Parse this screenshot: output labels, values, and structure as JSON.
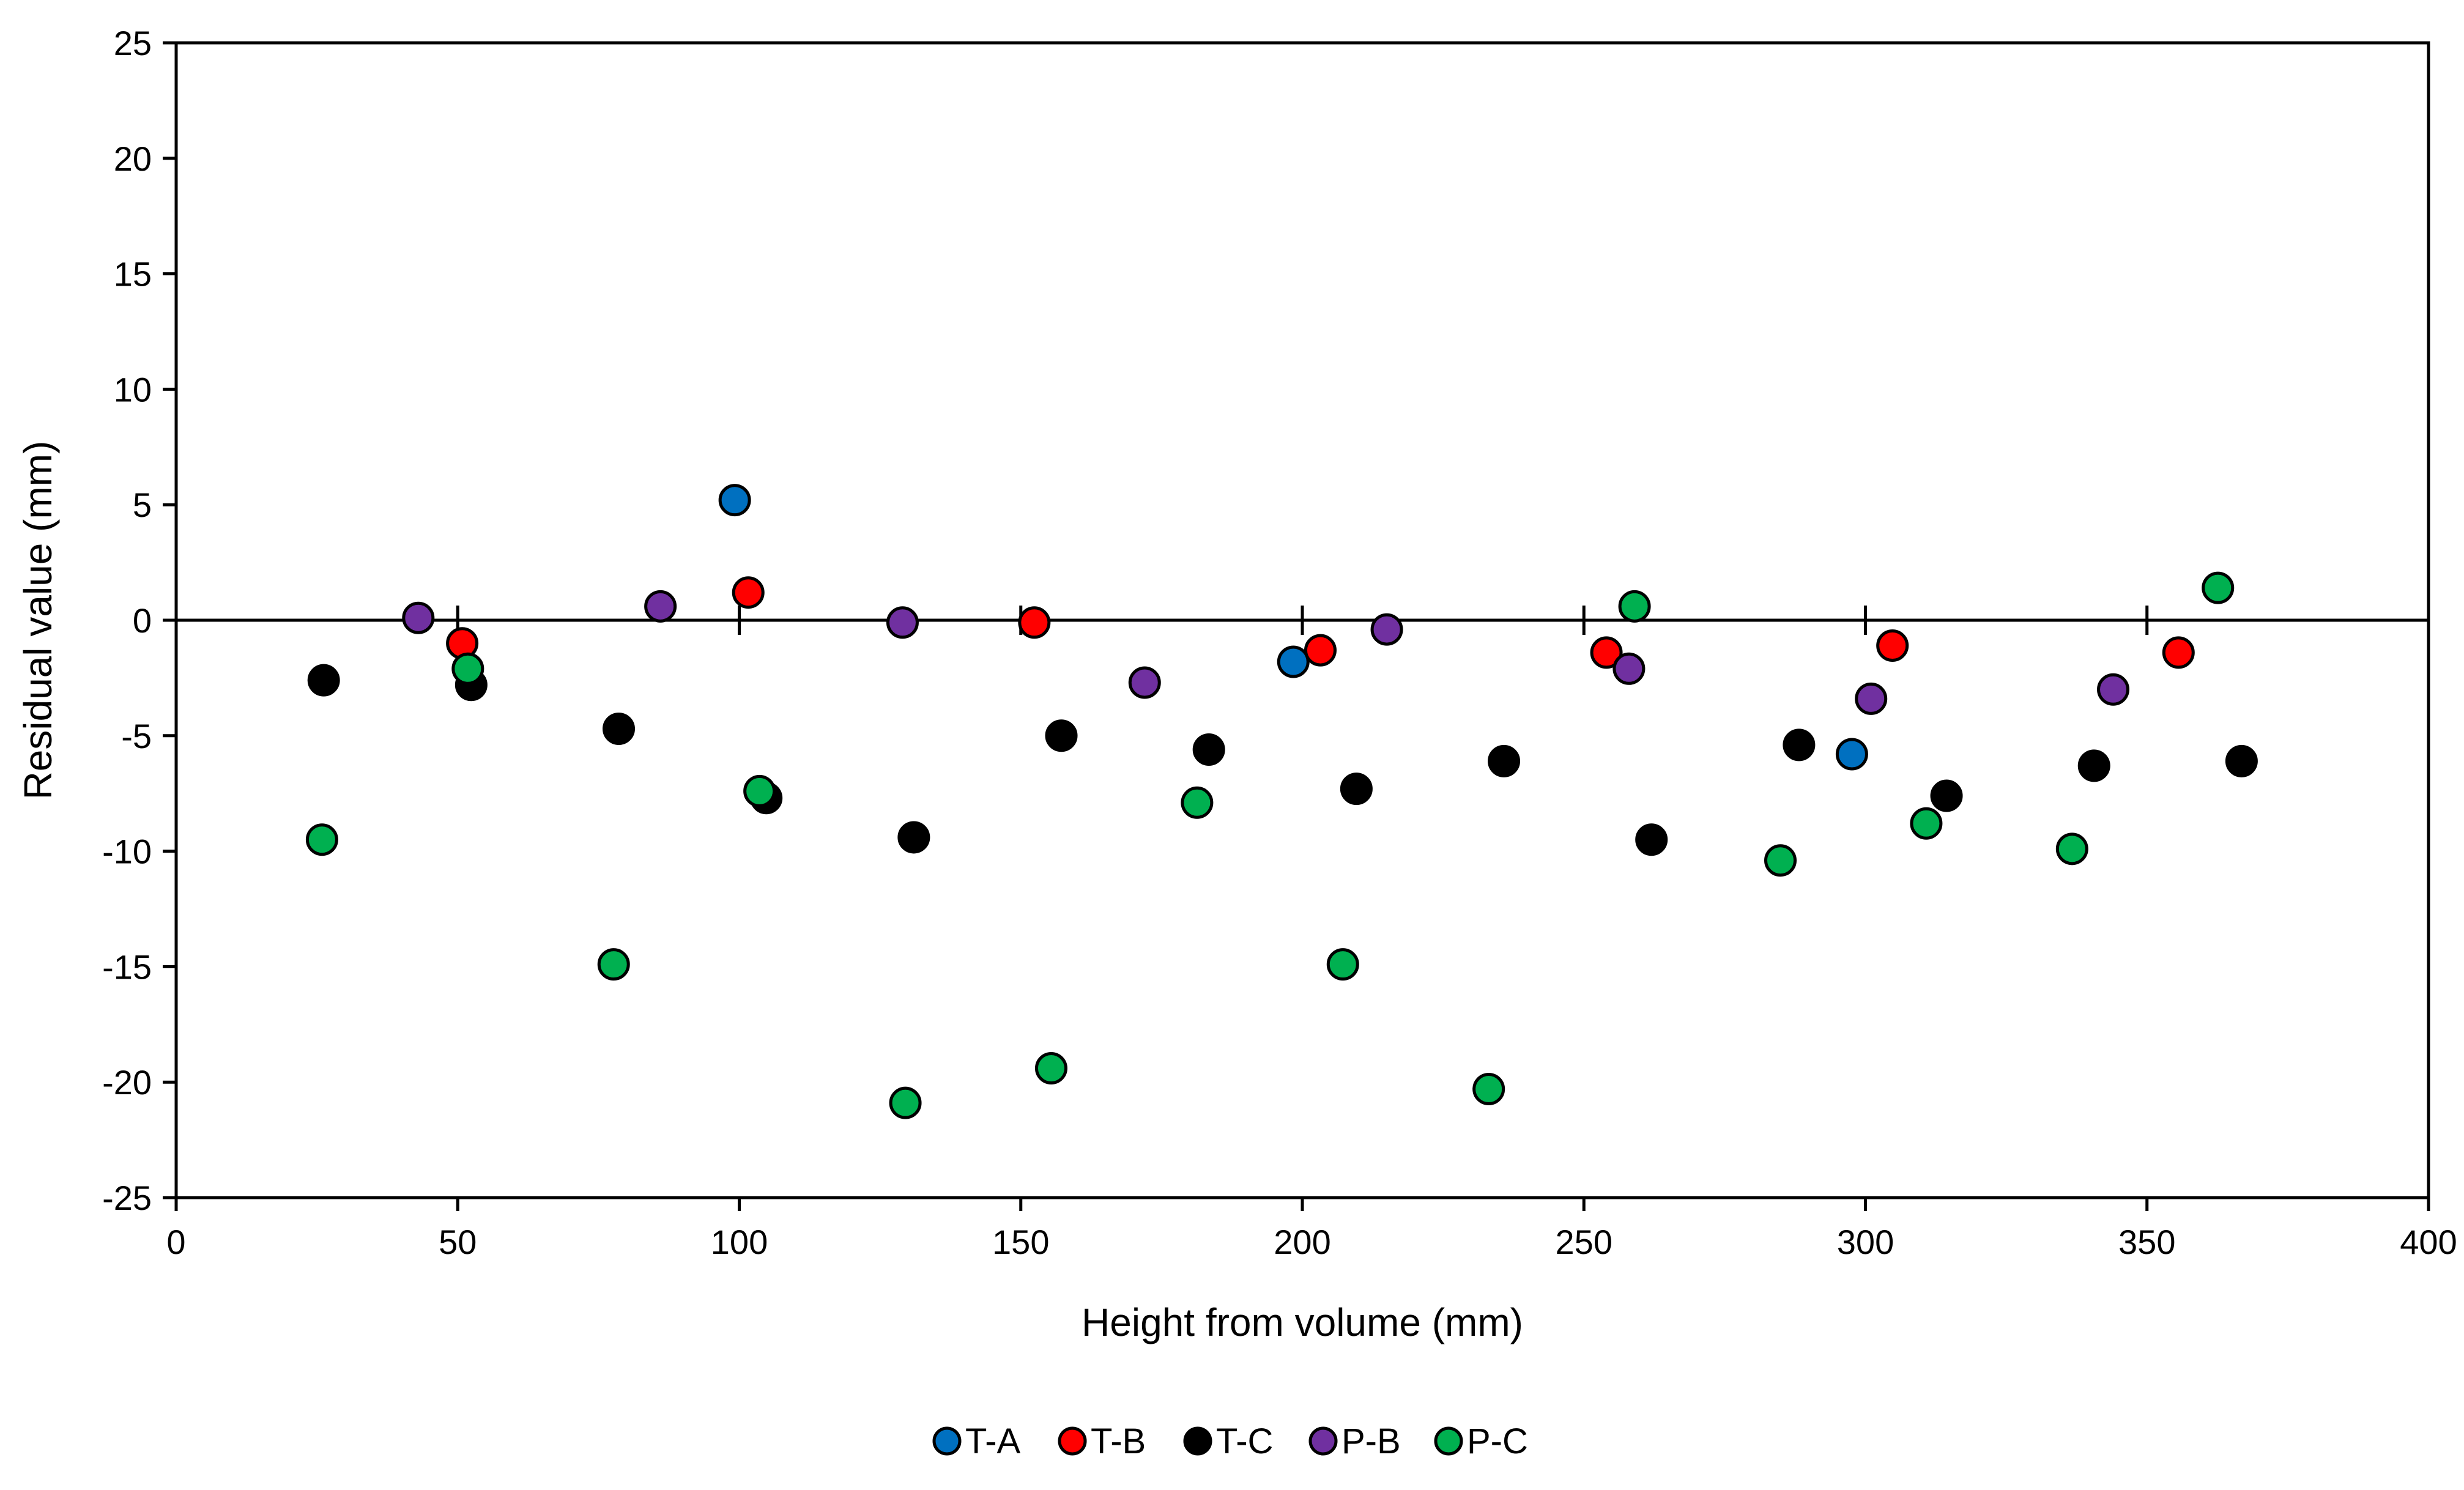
{
  "chart_data": {
    "type": "scatter",
    "title": "",
    "xlabel": "Height from volume (mm)",
    "ylabel": "Residual value (mm)",
    "xlim": [
      0,
      400
    ],
    "ylim": [
      -25,
      25
    ],
    "xticks": [
      0,
      50,
      100,
      150,
      200,
      250,
      300,
      350,
      400
    ],
    "yticks": [
      25,
      20,
      15,
      10,
      5,
      0,
      -5,
      -10,
      -15,
      -20,
      -25
    ],
    "grid": false,
    "zero_line": true,
    "legend_position": "bottom",
    "series": [
      {
        "name": "T-A",
        "color": "#0070c0",
        "points": [
          [
            99.2,
            5.2
          ],
          [
            198.4,
            -1.8
          ],
          [
            297.6,
            -5.8
          ]
        ]
      },
      {
        "name": "T-B",
        "color": "#ff0000",
        "points": [
          [
            50.8,
            -1.0
          ],
          [
            101.6,
            1.2
          ],
          [
            152.4,
            -0.1
          ],
          [
            203.2,
            -1.3
          ],
          [
            254.0,
            -1.4
          ],
          [
            304.8,
            -1.1
          ],
          [
            355.6,
            -1.4
          ]
        ]
      },
      {
        "name": "T-C",
        "color": "#000000",
        "points": [
          [
            26.2,
            -2.6
          ],
          [
            52.4,
            -2.8
          ],
          [
            78.6,
            -4.7
          ],
          [
            104.8,
            -7.7
          ],
          [
            131.0,
            -9.4
          ],
          [
            157.2,
            -5.0
          ],
          [
            183.4,
            -5.6
          ],
          [
            209.6,
            -7.3
          ],
          [
            235.8,
            -6.1
          ],
          [
            262.0,
            -9.5
          ],
          [
            288.2,
            -5.4
          ],
          [
            314.4,
            -7.6
          ],
          [
            340.6,
            -6.3
          ],
          [
            366.8,
            -6.1
          ]
        ]
      },
      {
        "name": "P-B",
        "color": "#7030a0",
        "points": [
          [
            43.0,
            0.1
          ],
          [
            86.0,
            0.6
          ],
          [
            129.0,
            -0.1
          ],
          [
            172.0,
            -2.7
          ],
          [
            215.0,
            -0.4
          ],
          [
            258.0,
            -2.1
          ],
          [
            301.0,
            -3.4
          ],
          [
            344.0,
            -3.0
          ]
        ]
      },
      {
        "name": "P-C",
        "color": "#00b050",
        "points": [
          [
            25.9,
            -9.5
          ],
          [
            51.8,
            -2.1
          ],
          [
            77.7,
            -14.9
          ],
          [
            103.6,
            -7.4
          ],
          [
            129.5,
            -20.9
          ],
          [
            155.4,
            -19.4
          ],
          [
            181.3,
            -7.9
          ],
          [
            207.2,
            -14.9
          ],
          [
            233.1,
            -20.3
          ],
          [
            259.0,
            0.6
          ],
          [
            284.9,
            -10.4
          ],
          [
            310.8,
            -8.8
          ],
          [
            336.7,
            -9.9
          ],
          [
            362.6,
            1.4
          ]
        ]
      }
    ]
  }
}
